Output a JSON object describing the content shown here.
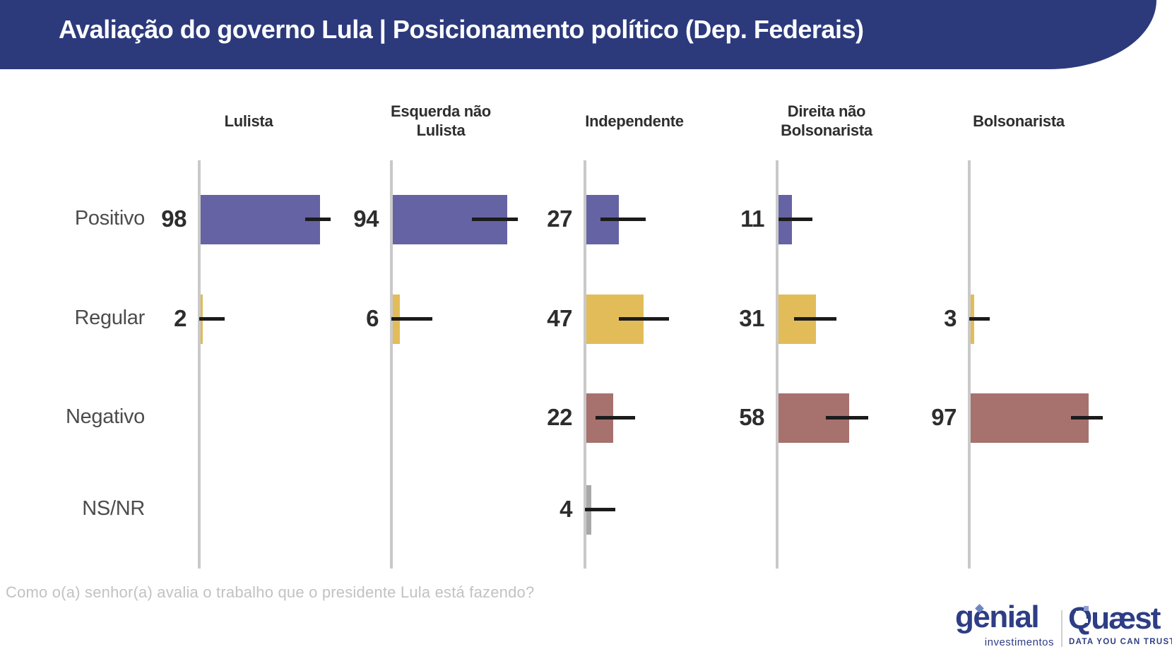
{
  "header": {
    "title": "Avaliação do governo Lula | Posicionamento político (Dep. Federais)"
  },
  "chart_data": {
    "type": "bar",
    "orientation": "horizontal",
    "unit": "%",
    "value_range": [
      0,
      100
    ],
    "grid": false,
    "error_bars": true,
    "rows": [
      {
        "key": "positivo",
        "label": "Positivo",
        "color": "#6563a3"
      },
      {
        "key": "regular",
        "label": "Regular",
        "color": "#e2bc59"
      },
      {
        "key": "negativo",
        "label": "Negativo",
        "color": "#a7716e"
      },
      {
        "key": "nsnr",
        "label": "NS/NR",
        "color": "#a8a8a8"
      }
    ],
    "panels": [
      {
        "label_lines": [
          "Lulista"
        ],
        "bars": [
          {
            "row": "positivo",
            "value": 98,
            "ci": [
              87,
              108
            ]
          },
          {
            "row": "regular",
            "value": 2,
            "ci": [
              0,
              21
            ]
          }
        ]
      },
      {
        "label_lines": [
          "Esquerda não",
          "Lulista"
        ],
        "bars": [
          {
            "row": "positivo",
            "value": 94,
            "ci": [
              66,
              104
            ]
          },
          {
            "row": "regular",
            "value": 6,
            "ci": [
              0,
              34
            ]
          }
        ]
      },
      {
        "label_lines": [
          "Independente"
        ],
        "bars": [
          {
            "row": "positivo",
            "value": 27,
            "ci": [
              13,
              50
            ]
          },
          {
            "row": "regular",
            "value": 47,
            "ci": [
              28,
              69
            ]
          },
          {
            "row": "negativo",
            "value": 22,
            "ci": [
              9,
              41
            ]
          },
          {
            "row": "nsnr",
            "value": 4,
            "ci": [
              0,
              25
            ]
          }
        ]
      },
      {
        "label_lines": [
          "Direita não",
          "Bolsonarista"
        ],
        "bars": [
          {
            "row": "positivo",
            "value": 11,
            "ci": [
              1,
              29
            ]
          },
          {
            "row": "regular",
            "value": 31,
            "ci": [
              14,
              49
            ]
          },
          {
            "row": "negativo",
            "value": 58,
            "ci": [
              40,
              75
            ]
          }
        ]
      },
      {
        "label_lines": [
          "Bolsonarista"
        ],
        "bars": [
          {
            "row": "regular",
            "value": 3,
            "ci": [
              0,
              17
            ]
          },
          {
            "row": "negativo",
            "value": 97,
            "ci": [
              84,
              110
            ]
          }
        ]
      }
    ],
    "style": {
      "axis_color": "#c9c9c9",
      "error_bar_color": "#1b1b1b",
      "value_label_color": "#2d2d2d",
      "row_label_color": "#4c4c4c",
      "header_color": "#2e2e2e"
    }
  },
  "footnote": {
    "question": "Como o(a) senhor(a) avalia o trabalho que o presidente Lula está fazendo?"
  },
  "branding": {
    "genial": {
      "name": "genial",
      "sub": "investimentos"
    },
    "quaest": {
      "name": "Quæst",
      "tagline": "DATA YOU CAN TRUST"
    }
  }
}
